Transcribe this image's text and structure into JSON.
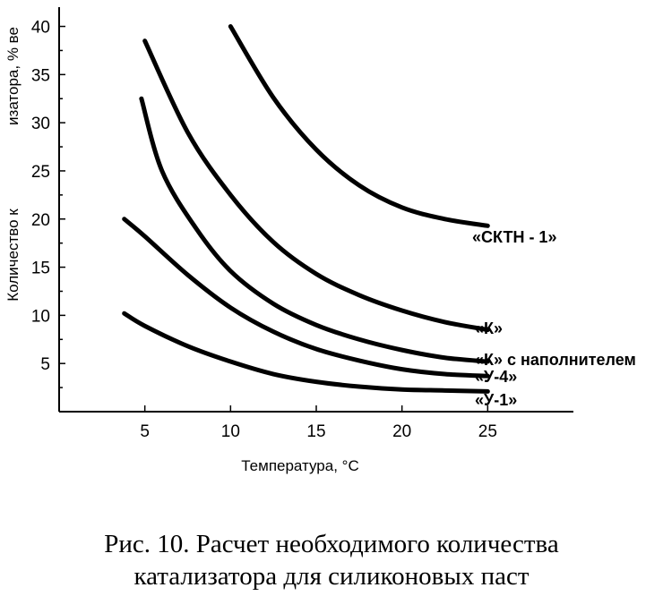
{
  "chart_data": {
    "type": "line",
    "xlabel": "Температура, °С",
    "ylabel_part1": "Количество к",
    "ylabel_part2": "изатора, % ве",
    "xlim": [
      0,
      30
    ],
    "ylim": [
      0,
      42
    ],
    "xticks": [
      5,
      10,
      15,
      20,
      25
    ],
    "yticks": [
      5,
      10,
      15,
      20,
      25,
      30,
      35,
      40
    ],
    "series": [
      {
        "name": "«СКТН - 1»",
        "x": [
          10,
          12.5,
          15,
          17.5,
          20,
          22.5,
          25
        ],
        "y": [
          40,
          32.6,
          27.2,
          23.5,
          21.2,
          20,
          19.3
        ]
      },
      {
        "name": "«К»",
        "x": [
          5,
          7.5,
          10,
          12.5,
          15,
          17.5,
          20,
          22.5,
          25
        ],
        "y": [
          38.5,
          29,
          22.5,
          17.6,
          14.3,
          12.1,
          10.5,
          9.3,
          8.5
        ]
      },
      {
        "name": "«К» с наполнителем",
        "x": [
          4.8,
          6,
          8,
          10,
          12.5,
          15,
          17.5,
          20,
          22.5,
          25
        ],
        "y": [
          32.5,
          25,
          19,
          14.6,
          11.2,
          9,
          7.5,
          6.4,
          5.6,
          5.2
        ]
      },
      {
        "name": "«У-4»",
        "x": [
          3.8,
          5,
          7.5,
          10,
          12.5,
          15,
          17.5,
          20,
          22.5,
          25
        ],
        "y": [
          20,
          18.2,
          14.2,
          10.8,
          8.3,
          6.5,
          5.3,
          4.4,
          3.9,
          3.7
        ]
      },
      {
        "name": "«У-1»",
        "x": [
          3.8,
          5,
          7.5,
          10,
          12.5,
          15,
          17.5,
          20,
          22.5,
          25
        ],
        "y": [
          10.2,
          8.9,
          6.8,
          5.2,
          3.9,
          3.1,
          2.6,
          2.3,
          2.2,
          2.1
        ]
      }
    ]
  },
  "caption": {
    "line1": "Рис. 10. Расчет необходимого количества",
    "line2": "катализатора для силиконовых паст"
  }
}
